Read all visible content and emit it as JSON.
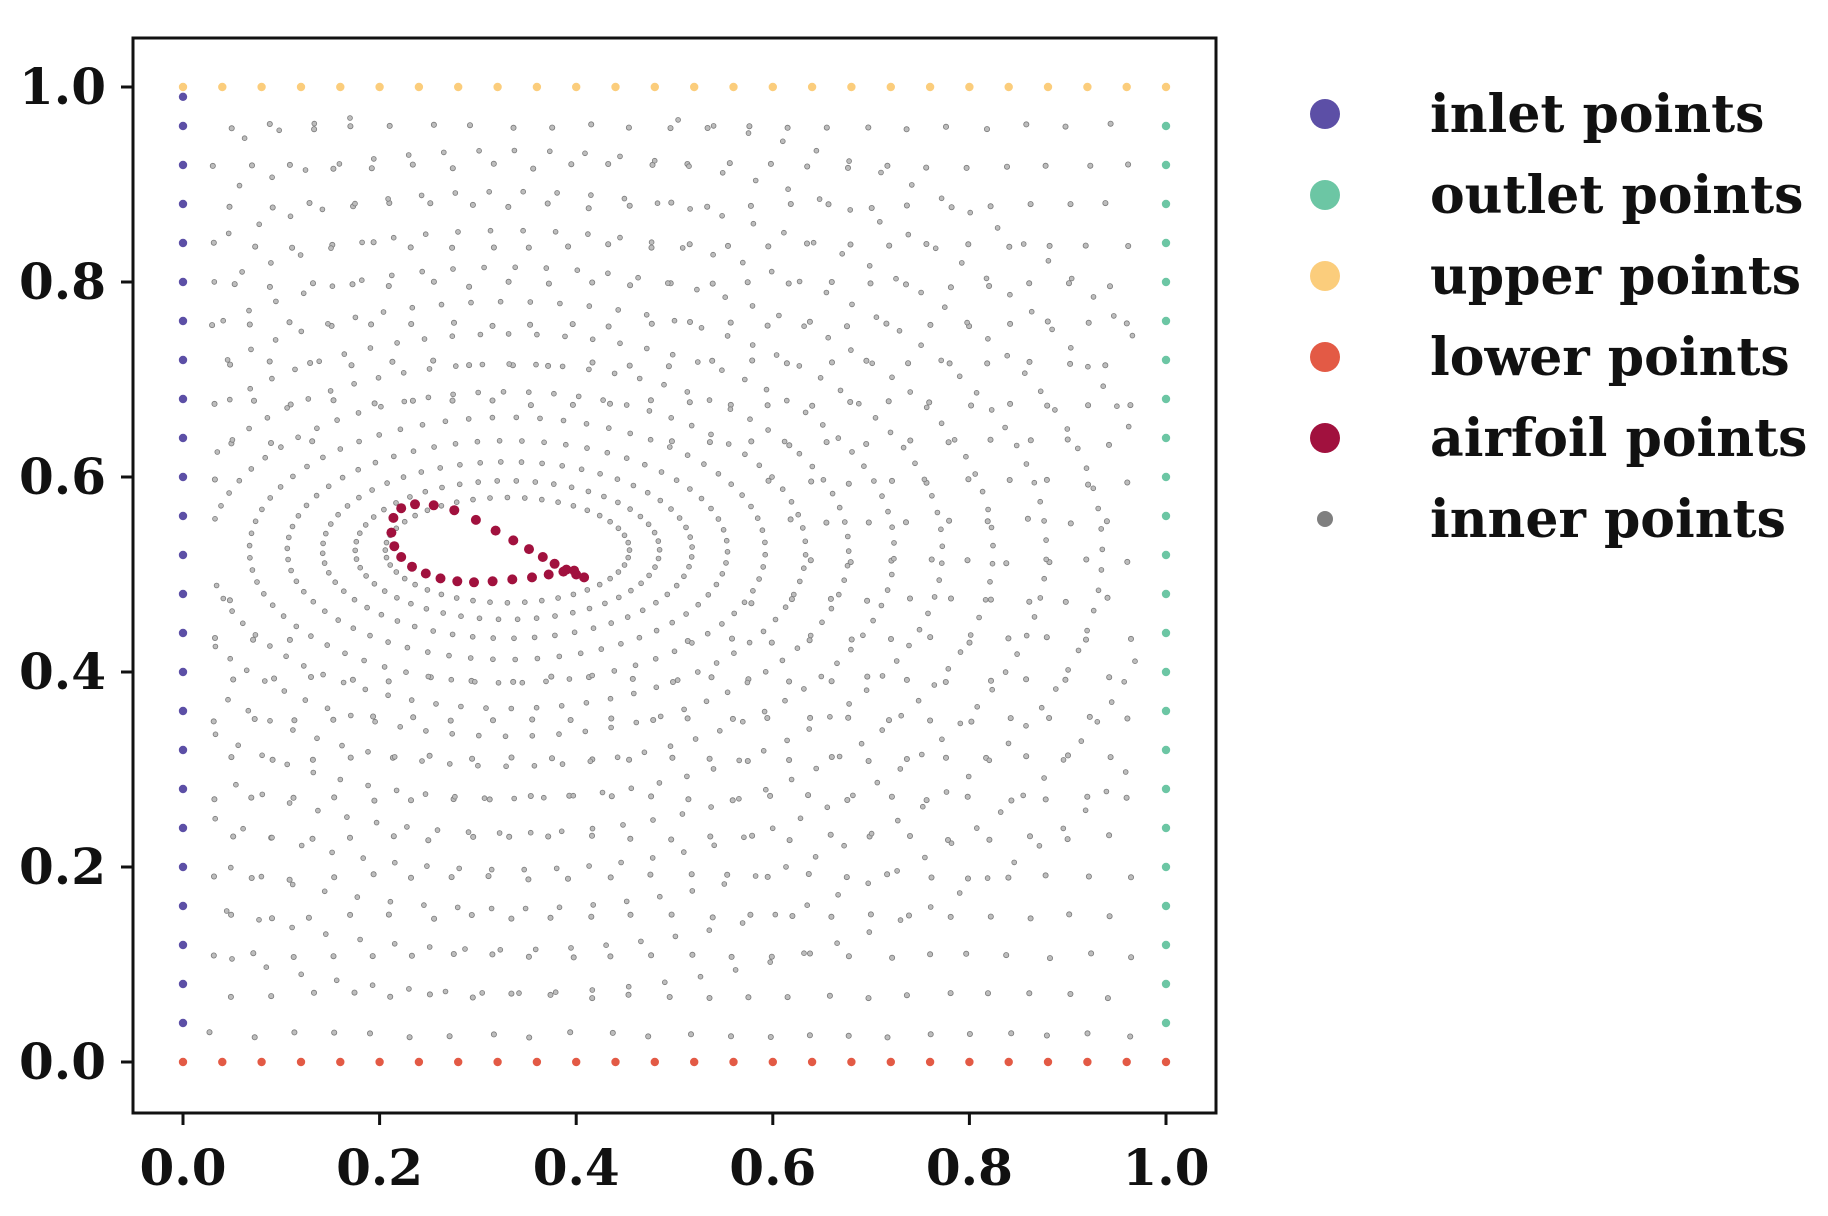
{
  "chart_data": {
    "type": "scatter",
    "title": "",
    "xlabel": "",
    "ylabel": "",
    "xlim": [
      -0.05,
      1.05
    ],
    "ylim": [
      -0.05,
      1.05
    ],
    "x_ticks": [
      "0.0",
      "0.2",
      "0.4",
      "0.6",
      "0.8",
      "1.0"
    ],
    "y_ticks": [
      "0.0",
      "0.2",
      "0.4",
      "0.6",
      "0.8",
      "1.0"
    ],
    "grid": false,
    "legend_position": "outside-right-top",
    "series": [
      {
        "name": "inlet points",
        "color": "#5c4fa6",
        "marker": "circle",
        "x": [
          0,
          0,
          0,
          0,
          0,
          0,
          0,
          0,
          0,
          0,
          0,
          0,
          0,
          0,
          0,
          0,
          0,
          0,
          0,
          0,
          0,
          0,
          0,
          0,
          0
        ],
        "y": [
          0.04,
          0.08,
          0.12,
          0.16,
          0.2,
          0.24,
          0.28,
          0.32,
          0.36,
          0.4,
          0.44,
          0.48,
          0.52,
          0.56,
          0.6,
          0.64,
          0.68,
          0.72,
          0.76,
          0.8,
          0.84,
          0.88,
          0.92,
          0.96,
          0.99
        ]
      },
      {
        "name": "outlet points",
        "color": "#6cc6a4",
        "marker": "circle",
        "x": [
          1,
          1,
          1,
          1,
          1,
          1,
          1,
          1,
          1,
          1,
          1,
          1,
          1,
          1,
          1,
          1,
          1,
          1,
          1,
          1,
          1,
          1,
          1,
          1
        ],
        "y": [
          0.04,
          0.08,
          0.12,
          0.16,
          0.2,
          0.24,
          0.28,
          0.32,
          0.36,
          0.4,
          0.44,
          0.48,
          0.52,
          0.56,
          0.6,
          0.64,
          0.68,
          0.72,
          0.76,
          0.8,
          0.84,
          0.88,
          0.92,
          0.96
        ]
      },
      {
        "name": "upper points",
        "color": "#fbcd7c",
        "marker": "circle",
        "x": [
          0,
          0.04,
          0.08,
          0.12,
          0.16,
          0.2,
          0.24,
          0.28,
          0.32,
          0.36,
          0.4,
          0.44,
          0.48,
          0.52,
          0.56,
          0.6,
          0.64,
          0.68,
          0.72,
          0.76,
          0.8,
          0.84,
          0.88,
          0.92,
          0.96,
          1.0
        ],
        "y": [
          1,
          1,
          1,
          1,
          1,
          1,
          1,
          1,
          1,
          1,
          1,
          1,
          1,
          1,
          1,
          1,
          1,
          1,
          1,
          1,
          1,
          1,
          1,
          1,
          1,
          1
        ]
      },
      {
        "name": "lower points",
        "color": "#e35a45",
        "marker": "circle",
        "x": [
          0,
          0.04,
          0.08,
          0.12,
          0.16,
          0.2,
          0.24,
          0.28,
          0.32,
          0.36,
          0.4,
          0.44,
          0.48,
          0.52,
          0.56,
          0.6,
          0.64,
          0.68,
          0.72,
          0.76,
          0.8,
          0.84,
          0.88,
          0.92,
          0.96,
          1.0
        ],
        "y": [
          0,
          0,
          0,
          0,
          0,
          0,
          0,
          0,
          0,
          0,
          0,
          0,
          0,
          0,
          0,
          0,
          0,
          0,
          0,
          0,
          0,
          0,
          0,
          0,
          0,
          0
        ]
      },
      {
        "name": "airfoil points",
        "color": "#a1113e",
        "marker": "circle",
        "x": [
          0.408,
          0.4,
          0.39,
          0.378,
          0.366,
          0.352,
          0.336,
          0.318,
          0.298,
          0.276,
          0.255,
          0.236,
          0.222,
          0.214,
          0.212,
          0.215,
          0.222,
          0.233,
          0.247,
          0.262,
          0.279,
          0.296,
          0.315,
          0.335,
          0.355,
          0.372,
          0.387,
          0.398
        ],
        "y": [
          0.497,
          0.5,
          0.505,
          0.511,
          0.518,
          0.526,
          0.535,
          0.545,
          0.556,
          0.566,
          0.571,
          0.572,
          0.568,
          0.558,
          0.543,
          0.529,
          0.518,
          0.508,
          0.501,
          0.496,
          0.493,
          0.492,
          0.493,
          0.495,
          0.497,
          0.5,
          0.503,
          0.504
        ]
      },
      {
        "name": "inner points",
        "color": "#8c8c8c",
        "marker": "small-circle",
        "cloud": true,
        "distribution": "quasi-uniform grid over (0.03–0.97, 0.03–0.97), concentric refinement around the airfoil"
      }
    ]
  },
  "legend": {
    "items": [
      {
        "label": "inlet points",
        "color": "#5c4fa6",
        "marker": "circle"
      },
      {
        "label": "outlet points",
        "color": "#6cc6a4",
        "marker": "circle"
      },
      {
        "label": "upper points",
        "color": "#fbcd7c",
        "marker": "circle"
      },
      {
        "label": "lower points",
        "color": "#e35a45",
        "marker": "circle"
      },
      {
        "label": "airfoil points",
        "color": "#a1113e",
        "marker": "circle"
      },
      {
        "label": "inner points",
        "color": "#8c8c8c",
        "marker": "small-circle"
      }
    ]
  }
}
